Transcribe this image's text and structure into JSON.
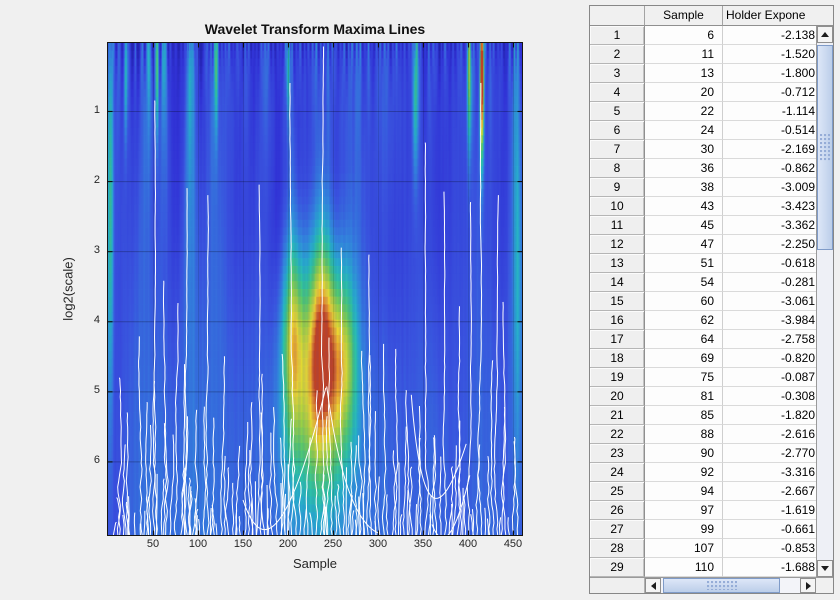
{
  "figure": {
    "title": "Wavelet Transform Maxima Lines",
    "xlabel": "Sample",
    "ylabel": "log2(scale)"
  },
  "chart_data": {
    "type": "heatmap",
    "title": "Wavelet Transform Maxima Lines",
    "xlabel": "Sample",
    "ylabel": "log2(scale)",
    "x_range": [
      1,
      460
    ],
    "y_range_log2scale": [
      0,
      7
    ],
    "x_ticks": [
      50,
      100,
      150,
      200,
      250,
      300,
      350,
      400,
      450
    ],
    "y_ticks": [
      1,
      2,
      3,
      4,
      5,
      6
    ],
    "grid": true,
    "colormap_stops": [
      [
        0.0,
        "#1c1c8f"
      ],
      [
        0.08,
        "#2424b2"
      ],
      [
        0.17,
        "#3133d6"
      ],
      [
        0.28,
        "#3a55de"
      ],
      [
        0.4,
        "#3388dc"
      ],
      [
        0.5,
        "#27b0c9"
      ],
      [
        0.58,
        "#2dc3a2"
      ],
      [
        0.67,
        "#55c96a"
      ],
      [
        0.76,
        "#a2d240"
      ],
      [
        0.85,
        "#eed92f"
      ],
      [
        0.93,
        "#e89028"
      ],
      [
        1.0,
        "#c03a1e"
      ]
    ],
    "maxima_lines": {
      "description": "white wavelet-transform modulus-maxima lines; sample position of each line at the largest scale (plot bottom)",
      "samples_from_table": [
        6,
        11,
        13,
        20,
        22,
        24,
        30,
        36,
        38,
        43,
        45,
        47,
        51,
        54,
        60,
        62,
        64,
        69,
        75,
        81,
        85,
        88,
        90,
        92,
        94,
        97,
        99,
        107,
        110
      ],
      "samples_estimated": [
        114,
        118,
        121,
        126,
        130,
        134,
        139,
        143,
        147,
        152,
        156,
        161,
        165,
        170,
        174,
        178,
        183,
        188,
        192,
        197,
        201,
        204,
        209,
        213,
        218,
        222,
        227,
        231,
        236,
        240,
        244,
        249,
        253,
        258,
        262,
        267,
        271,
        276,
        280,
        285,
        289,
        293,
        298,
        302,
        307,
        311,
        316,
        320,
        325,
        329,
        334,
        338,
        343,
        347,
        352,
        356,
        361,
        365,
        370,
        374,
        379,
        383,
        388,
        392,
        397,
        401,
        406,
        410,
        415,
        419,
        424,
        428,
        433,
        437,
        442,
        446,
        451,
        455
      ],
      "tall_line_tops_log2scale": {
        "54": 0.85,
        "85": 2.1,
        "110": 2.2,
        "165": 2.05,
        "204": 0.6,
        "236": 0.08,
        "262": 2.95,
        "293": 3.05,
        "352": 1.45,
        "374": 2.15,
        "401": 2.3,
        "415": 0.6,
        "433": 2.2
      }
    },
    "intensity_hotspots": [
      {
        "sample": 236,
        "log2scale": 4.25,
        "w": 14,
        "h": 1.15,
        "v": 0.66
      },
      {
        "sample": 205,
        "log2scale": 4.2,
        "w": 9,
        "h": 1.05,
        "v": 0.46
      },
      {
        "sample": 262,
        "log2scale": 4.55,
        "w": 11,
        "h": 0.95,
        "v": 0.38
      },
      {
        "sample": 2,
        "log2scale": 2.1,
        "w": 2.6,
        "h": 2.4,
        "v": 0.42
      },
      {
        "sample": 415,
        "log2scale": 0.4,
        "w": 1.7,
        "h": 0.9,
        "v": 0.9
      },
      {
        "sample": 54,
        "log2scale": 0.35,
        "w": 1.5,
        "h": 0.8,
        "v": 0.5
      },
      {
        "sample": 401,
        "log2scale": 0.45,
        "w": 1.8,
        "h": 0.8,
        "v": 0.5
      },
      {
        "sample": 341,
        "log2scale": 0.6,
        "w": 2.2,
        "h": 0.9,
        "v": 0.34
      },
      {
        "sample": 120,
        "log2scale": 0.35,
        "w": 1.6,
        "h": 0.7,
        "v": 0.3
      },
      {
        "sample": 19,
        "log2scale": 0.4,
        "w": 1.5,
        "h": 0.7,
        "v": 0.32
      },
      {
        "sample": 200,
        "log2scale": 0.3,
        "w": 1.4,
        "h": 0.6,
        "v": 0.35
      },
      {
        "sample": 455,
        "log2scale": 3.2,
        "w": 4,
        "h": 2.2,
        "v": 0.25
      },
      {
        "sample": 228,
        "log2scale": 5.6,
        "w": 26,
        "h": 1.0,
        "v": 0.22
      }
    ],
    "shadow_spots": [
      {
        "sample": 222,
        "log2scale": 2.8,
        "w": 10,
        "h": 1.2,
        "v": -0.1
      },
      {
        "sample": 252,
        "log2scale": 2.9,
        "w": 9,
        "h": 1.1,
        "v": -0.09
      },
      {
        "sample": 188,
        "log2scale": 2.6,
        "w": 9,
        "h": 1.0,
        "v": -0.08
      },
      {
        "sample": 310,
        "log2scale": 3.1,
        "w": 14,
        "h": 1.2,
        "v": -0.07
      },
      {
        "sample": 150,
        "log2scale": 2.3,
        "w": 12,
        "h": 1.4,
        "v": -0.06
      },
      {
        "sample": 365,
        "log2scale": 2.4,
        "w": 14,
        "h": 1.5,
        "v": -0.06
      },
      {
        "sample": 60,
        "log2scale": 3.0,
        "w": 12,
        "h": 1.5,
        "v": -0.05
      },
      {
        "sample": 430,
        "log2scale": 2.6,
        "w": 12,
        "h": 1.4,
        "v": -0.05
      }
    ]
  },
  "table": {
    "columns": [
      "Sample",
      "Holder Expone"
    ],
    "rows": [
      [
        1,
        6,
        "-2.138"
      ],
      [
        2,
        11,
        "-1.520"
      ],
      [
        3,
        13,
        "-1.800"
      ],
      [
        4,
        20,
        "-0.712"
      ],
      [
        5,
        22,
        "-1.114"
      ],
      [
        6,
        24,
        "-0.514"
      ],
      [
        7,
        30,
        "-2.169"
      ],
      [
        8,
        36,
        "-0.862"
      ],
      [
        9,
        38,
        "-3.009"
      ],
      [
        10,
        43,
        "-3.423"
      ],
      [
        11,
        45,
        "-3.362"
      ],
      [
        12,
        47,
        "-2.250"
      ],
      [
        13,
        51,
        "-0.618"
      ],
      [
        14,
        54,
        "-0.281"
      ],
      [
        15,
        60,
        "-3.061"
      ],
      [
        16,
        62,
        "-3.984"
      ],
      [
        17,
        64,
        "-2.758"
      ],
      [
        18,
        69,
        "-0.820"
      ],
      [
        19,
        75,
        "-0.087"
      ],
      [
        20,
        81,
        "-0.308"
      ],
      [
        21,
        85,
        "-1.820"
      ],
      [
        22,
        88,
        "-2.616"
      ],
      [
        23,
        90,
        "-2.770"
      ],
      [
        24,
        92,
        "-3.316"
      ],
      [
        25,
        94,
        "-2.667"
      ],
      [
        26,
        97,
        "-1.619"
      ],
      [
        27,
        99,
        "-0.661"
      ],
      [
        28,
        107,
        "-0.853"
      ],
      [
        29,
        110,
        "-1.688"
      ]
    ]
  }
}
